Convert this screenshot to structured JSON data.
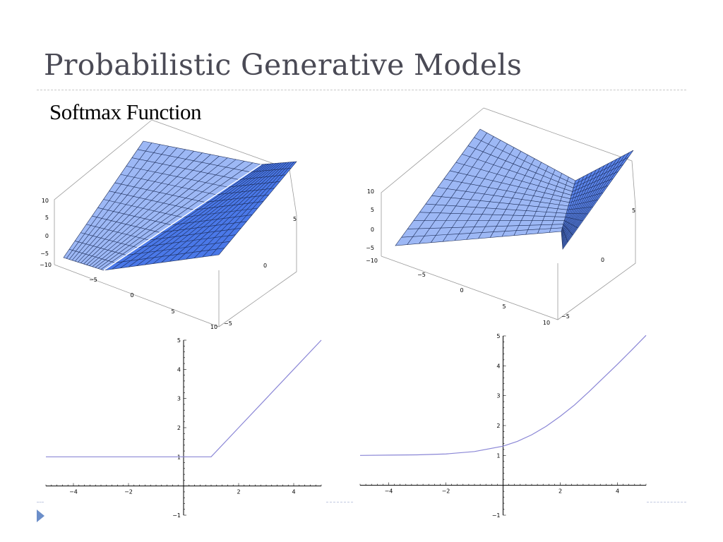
{
  "slide": {
    "title": "Probabilistic Generative Models",
    "subtitle": "Softmax Function",
    "bullet_icon": "triangle-bullet-icon",
    "accent_color": "#6b8ec9"
  },
  "chart_data": [
    {
      "type": "surface",
      "function": "max(x, y)",
      "z_ticks": [
        "10",
        "5",
        "0",
        "−5",
        "−10"
      ],
      "x_ticks": [
        "−5",
        "0",
        "5",
        "10"
      ],
      "y_ticks": [
        "5",
        "0",
        "−5"
      ],
      "surface_color": "#6f93ef"
    },
    {
      "type": "surface",
      "function": "softmax(x, y)",
      "z_ticks": [
        "10",
        "5",
        "0",
        "−5",
        "−10"
      ],
      "x_ticks": [
        "−5",
        "0",
        "5",
        "10"
      ],
      "y_ticks": [
        "5",
        "0",
        "−5"
      ],
      "surface_color": "#6f93ef"
    },
    {
      "type": "line",
      "function": "max(x, 1)",
      "x_ticks": [
        -4,
        -2,
        2,
        4
      ],
      "y_ticks": [
        -1,
        1,
        2,
        3,
        4,
        5
      ],
      "xlim": [
        -5,
        5
      ],
      "ylim": [
        -1,
        5
      ],
      "series": [
        {
          "x": [
            -5,
            -4,
            -3,
            -2,
            -1,
            0,
            1,
            2,
            3,
            4,
            5
          ],
          "y": [
            1,
            1,
            1,
            1,
            1,
            1,
            1,
            2,
            3,
            4,
            5
          ]
        }
      ],
      "line_color": "#8a86d6"
    },
    {
      "type": "line",
      "function": "ln(e^x + e)",
      "x_ticks": [
        -4,
        -2,
        2,
        4
      ],
      "y_ticks": [
        -1,
        1,
        2,
        3,
        4,
        5
      ],
      "xlim": [
        -5,
        5
      ],
      "ylim": [
        -1,
        5
      ],
      "series": [
        {
          "x": [
            -5,
            -4,
            -3,
            -2,
            -1,
            0,
            0.5,
            1,
            1.5,
            2,
            2.5,
            3,
            3.5,
            4,
            4.5,
            5
          ],
          "y": [
            1.0,
            1.01,
            1.02,
            1.05,
            1.13,
            1.31,
            1.47,
            1.69,
            1.97,
            2.31,
            2.69,
            3.13,
            3.59,
            4.05,
            4.53,
            5.02
          ]
        }
      ],
      "line_color": "#8a86d6"
    }
  ]
}
